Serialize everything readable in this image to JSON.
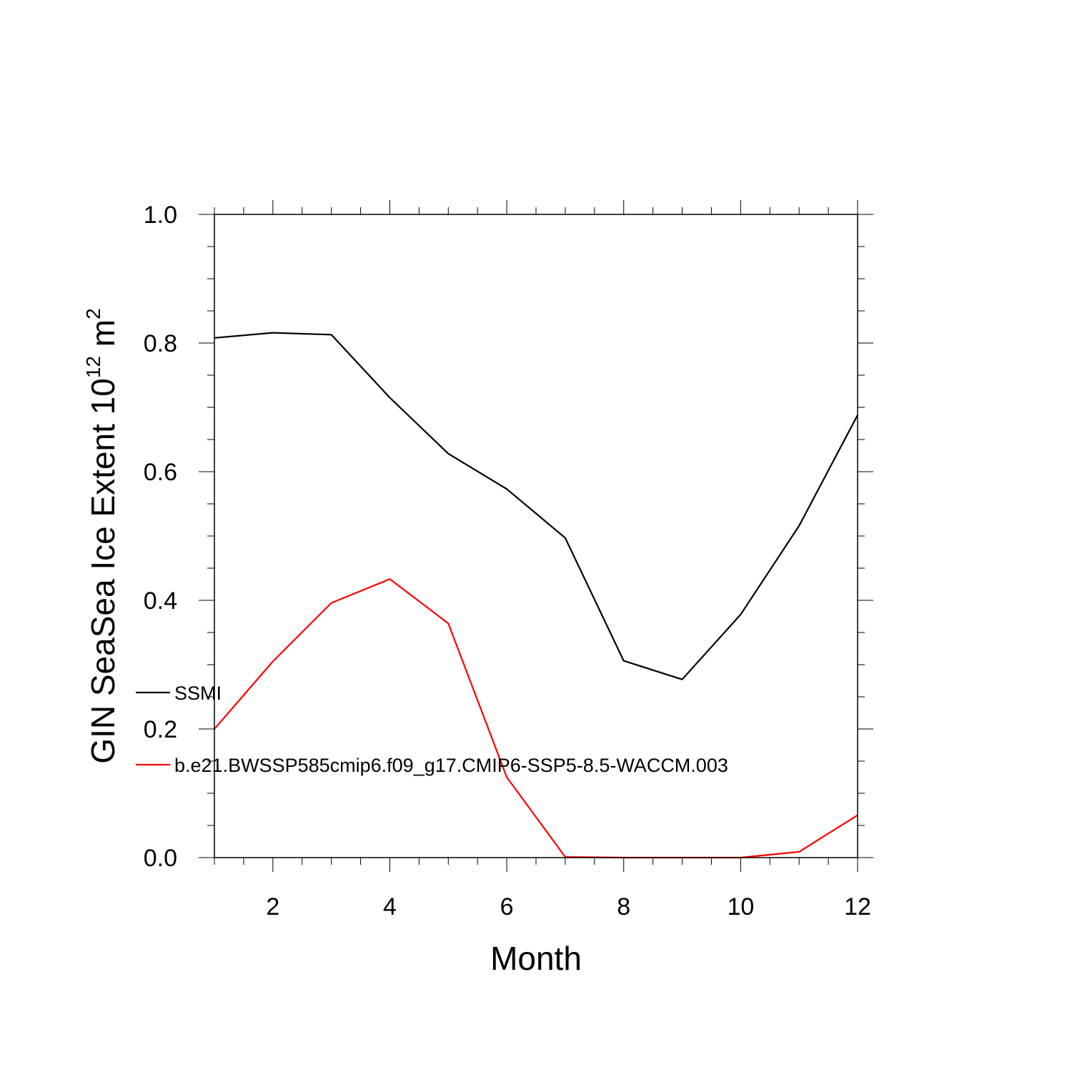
{
  "chart_data": {
    "type": "line",
    "title": "",
    "xlabel": "Month",
    "ylabel": {
      "base": "GIN SeaSea Ice Extent 10",
      "exponent": "12",
      "unit": " m",
      "unit_exponent": "2"
    },
    "xlim": [
      1,
      12
    ],
    "ylim": [
      0.0,
      1.0
    ],
    "x_ticks": [
      2,
      4,
      6,
      8,
      10,
      12
    ],
    "x_tick_labels": [
      "2",
      "4",
      "6",
      "8",
      "10",
      "12"
    ],
    "y_ticks": [
      0.0,
      0.2,
      0.4,
      0.6,
      0.8,
      1.0
    ],
    "y_tick_labels": [
      "0.0",
      "0.2",
      "0.4",
      "0.6",
      "0.8",
      "1.0"
    ],
    "grid": false,
    "legend_position": "center-left",
    "x": [
      1,
      2,
      3,
      4,
      5,
      6,
      7,
      8,
      9,
      10,
      11,
      12
    ],
    "series": [
      {
        "name": "SSMI",
        "color": "#000000",
        "values": [
          0.808,
          0.816,
          0.813,
          0.715,
          0.628,
          0.573,
          0.497,
          0.306,
          0.277,
          0.378,
          0.516,
          0.688
        ]
      },
      {
        "name": "b.e21.BWSSP585cmip6.f09_g17.CMIP6-SSP5-8.5-WACCM.003",
        "color": "#ff0000",
        "values": [
          0.2,
          0.305,
          0.396,
          0.433,
          0.364,
          0.125,
          0.001,
          0.0,
          0.0,
          0.0,
          0.009,
          0.066
        ]
      }
    ]
  }
}
